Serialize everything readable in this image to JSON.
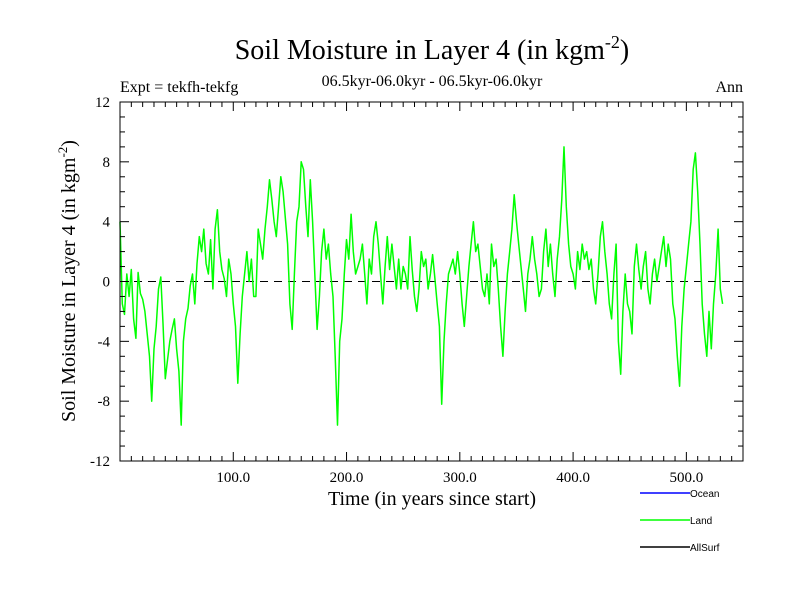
{
  "chart_data": {
    "type": "line",
    "title": "Soil Moisture in Layer 4 (in kgm",
    "title_sup": "-2",
    "title_close": ")",
    "subtitle": "06.5kyr-06.0kyr - 06.5kyr-06.0kyr",
    "left_label": "Expt = tekfh-tekfg",
    "right_label": "Ann",
    "xlabel": "Time (in years since start)",
    "ylabel": "Soil Moisture in Layer 4 (in kgm",
    "ylabel_sup": "-2",
    "ylabel_close": ")",
    "xlim": [
      0,
      550
    ],
    "ylim": [
      -12,
      12
    ],
    "xticks": [
      100,
      200,
      300,
      400,
      500
    ],
    "xtick_labels": [
      "100.0",
      "200.0",
      "300.0",
      "400.0",
      "500.0"
    ],
    "yticks": [
      -12,
      -8,
      -4,
      0,
      4,
      8,
      12
    ],
    "ytick_labels": [
      "-12",
      "-8",
      "-4",
      "0",
      "4",
      "8",
      "12"
    ],
    "zero_line": true,
    "legend": [
      {
        "name": "Ocean",
        "color": "#0000ff"
      },
      {
        "name": "Land",
        "color": "#00ff00"
      },
      {
        "name": "AllSurf",
        "color": "#000000"
      }
    ],
    "series": [
      {
        "name": "Land",
        "color": "#00ff00",
        "x_start": 0,
        "x_step": 2,
        "values": [
          4.0,
          -1.5,
          -2.2,
          0.5,
          -1.0,
          0.8,
          -2.5,
          -3.8,
          0.6,
          -0.8,
          -1.2,
          -2.0,
          -3.5,
          -5.0,
          -8.0,
          -4.5,
          -3.0,
          -0.5,
          0.3,
          -2.8,
          -6.5,
          -5.2,
          -4.0,
          -3.2,
          -2.5,
          -4.5,
          -6.0,
          -9.6,
          -4.0,
          -2.5,
          -1.8,
          -0.3,
          0.5,
          -1.5,
          1.2,
          3.0,
          2.0,
          3.5,
          1.2,
          0.5,
          2.8,
          -0.5,
          3.5,
          4.8,
          2.0,
          0.8,
          0.2,
          -1.0,
          1.5,
          0.5,
          -1.5,
          -3.0,
          -6.8,
          -3.5,
          -1.0,
          0.5,
          2.0,
          0.0,
          1.5,
          -1.0,
          -1.0,
          3.5,
          2.5,
          1.5,
          3.5,
          5.0,
          6.8,
          5.5,
          4.0,
          3.0,
          5.0,
          7.0,
          6.0,
          4.2,
          2.5,
          -1.5,
          -3.2,
          0.5,
          4.0,
          5.0,
          8.0,
          7.5,
          5.0,
          3.0,
          6.8,
          4.0,
          0.5,
          -3.2,
          -1.0,
          2.0,
          3.5,
          1.5,
          2.5,
          0.5,
          -1.0,
          -5.0,
          -9.6,
          -4.0,
          -2.5,
          0.5,
          2.8,
          1.5,
          4.5,
          2.0,
          0.5,
          1.0,
          1.5,
          2.5,
          0.5,
          -1.5,
          1.5,
          0.5,
          3.0,
          4.0,
          2.5,
          0.5,
          -1.5,
          1.0,
          3.0,
          0.8,
          2.5,
          1.0,
          -0.5,
          1.5,
          -0.5,
          1.0,
          0.5,
          -0.5,
          3.0,
          0.8,
          -1.0,
          -2.0,
          -0.5,
          2.0,
          1.0,
          1.5,
          -0.5,
          0.5,
          1.8,
          0.2,
          -1.5,
          -3.0,
          -8.2,
          -4.0,
          -1.5,
          0.5,
          1.0,
          1.5,
          0.5,
          2.0,
          0.5,
          -1.5,
          -3.0,
          -1.0,
          1.0,
          2.5,
          4.0,
          2.0,
          2.5,
          1.0,
          -0.5,
          -1.0,
          0.5,
          -1.5,
          2.5,
          1.0,
          1.5,
          -0.5,
          -3.0,
          -5.0,
          -2.0,
          0.5,
          2.0,
          3.5,
          5.8,
          4.0,
          2.5,
          1.0,
          -0.5,
          -2.0,
          0.5,
          1.5,
          3.0,
          1.5,
          0.5,
          -1.0,
          -0.5,
          2.0,
          3.5,
          1.0,
          2.5,
          0.5,
          -1.0,
          1.5,
          3.0,
          5.5,
          9.0,
          5.0,
          2.5,
          1.0,
          0.5,
          -0.5,
          2.0,
          0.8,
          2.5,
          1.5,
          2.0,
          0.8,
          1.5,
          -0.5,
          -1.5,
          0.5,
          3.0,
          4.0,
          2.0,
          0.5,
          -1.5,
          -2.5,
          0.5,
          2.5,
          -4.0,
          -6.2,
          -2.0,
          0.5,
          -1.5,
          -2.0,
          -3.5,
          1.0,
          2.5,
          0.8,
          -0.5,
          1.0,
          2.0,
          -0.5,
          -1.5,
          0.5,
          1.5,
          0.0,
          1.0,
          2.0,
          3.0,
          1.0,
          2.5,
          1.5,
          -1.5,
          -2.5,
          -5.0,
          -7.0,
          -3.0,
          -0.5,
          1.0,
          2.5,
          4.0,
          7.5,
          8.6,
          6.0,
          2.5,
          -1.5,
          -3.5,
          -5.0,
          -2.0,
          -4.5,
          -1.5,
          0.5,
          3.5,
          -0.5,
          -1.5
        ]
      }
    ]
  }
}
